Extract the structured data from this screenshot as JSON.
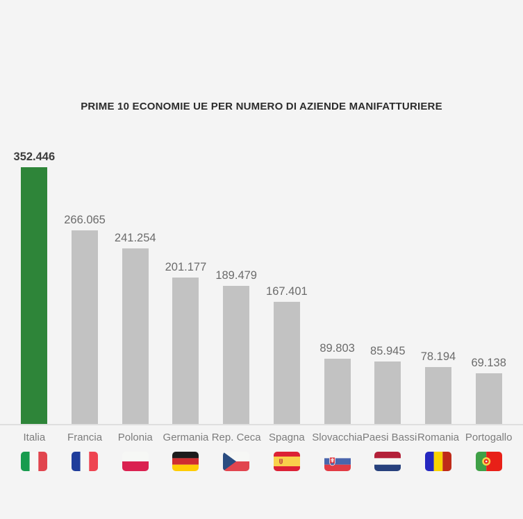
{
  "colors": {
    "background": "#f4f4f4",
    "title_text": "#2c2c2c",
    "highlight_bar": "#2e8539",
    "default_bar": "#c2c2c2",
    "baseline": "#dfdfdf",
    "highlight_value_text": "#3c3c3c",
    "value_text": "#6b6b6b",
    "category_text": "#7c7c7c"
  },
  "chart_data": {
    "type": "bar",
    "orientation": "vertical",
    "title": "PRIME 10 ECONOMIE UE PER NUMERO DI AZIENDE MANIFATTURIERE",
    "categories": [
      "Italia",
      "Francia",
      "Polonia",
      "Germania",
      "Rep. Ceca",
      "Spagna",
      "Slovacchia",
      "Paesi Bassi",
      "Romania",
      "Portogallo"
    ],
    "values": [
      352446,
      266065,
      241254,
      201177,
      189479,
      167401,
      89803,
      85945,
      78194,
      69138
    ],
    "value_labels": [
      "352.446",
      "266.065",
      "241.254",
      "201.177",
      "189.479",
      "167.401",
      "89.803",
      "85.945",
      "78.194",
      "69.138"
    ],
    "flag_icons": [
      "italy-flag-icon",
      "france-flag-icon",
      "poland-flag-icon",
      "germany-flag-icon",
      "czechia-flag-icon",
      "spain-flag-icon",
      "slovakia-flag-icon",
      "netherlands-flag-icon",
      "romania-flag-icon",
      "portugal-flag-icon"
    ],
    "highlighted_index": 0,
    "highlighted_category": "Italia",
    "xlabel": "",
    "ylabel": "",
    "ylim": [
      0,
      352446
    ],
    "grid": false,
    "legend": false
  }
}
